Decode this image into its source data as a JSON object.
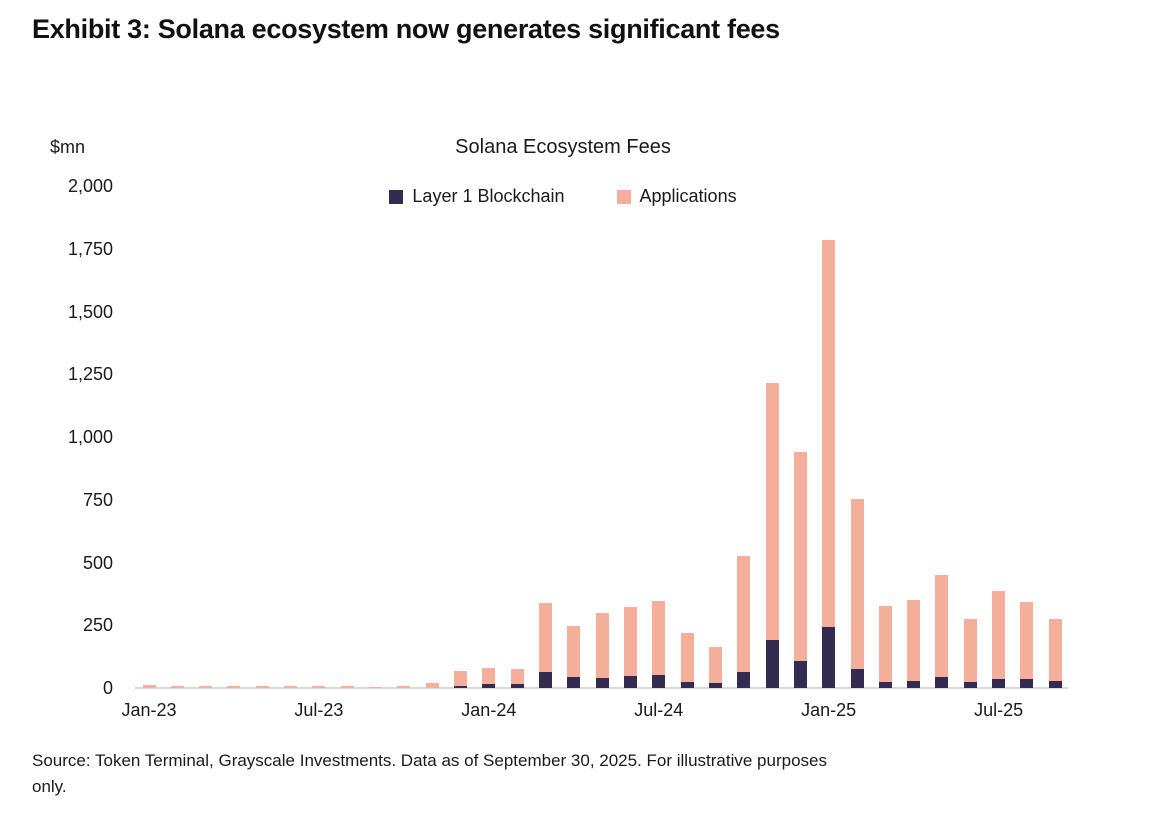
{
  "exhibit_title": "Exhibit 3: Solana ecosystem now generates significant fees",
  "source": {
    "line1": "Source: Token Terminal, Grayscale Investments. Data as of September 30, 2025. For illustrative purposes",
    "line2": "only."
  },
  "colors": {
    "layer1": "#332C50",
    "applications": "#F3AF99",
    "axis_line": "#D9D9D9",
    "text": "#1A1A1A"
  },
  "chart_data": {
    "type": "bar",
    "stacked": true,
    "title": "Solana Ecosystem Fees",
    "unit_label": "$mn",
    "grid": false,
    "legend_position": "top-center",
    "ylim": [
      0,
      2000
    ],
    "yticks": [
      0,
      250,
      500,
      750,
      1000,
      1250,
      1500,
      1750,
      2000
    ],
    "ytick_labels": [
      "0",
      "250",
      "500",
      "750",
      "1,000",
      "1,250",
      "1,500",
      "1,750",
      "2,000"
    ],
    "xtick_labels": [
      "Jan-23",
      "Jul-23",
      "Jan-24",
      "Jul-24",
      "Jan-25",
      "Jul-25"
    ],
    "categories": [
      "Jan-23",
      "Feb-23",
      "Mar-23",
      "Apr-23",
      "May-23",
      "Jun-23",
      "Jul-23",
      "Aug-23",
      "Sep-23",
      "Oct-23",
      "Nov-23",
      "Dec-23",
      "Jan-24",
      "Feb-24",
      "Mar-24",
      "Apr-24",
      "May-24",
      "Jun-24",
      "Jul-24",
      "Aug-24",
      "Sep-24",
      "Oct-24",
      "Nov-24",
      "Dec-24",
      "Jan-25",
      "Feb-25",
      "Mar-25",
      "Apr-25",
      "May-25",
      "Jun-25",
      "Jul-25",
      "Aug-25",
      "Sep-25"
    ],
    "series": [
      {
        "name": "Layer 1 Blockchain",
        "color": "#332C50",
        "values": [
          0,
          0,
          0,
          0,
          0,
          0,
          0,
          0,
          0,
          0,
          2,
          8,
          15,
          15,
          62,
          45,
          40,
          49,
          51,
          25,
          19,
          65,
          190,
          108,
          242,
          77,
          25,
          29,
          43,
          25,
          36,
          36,
          29
        ]
      },
      {
        "name": "Applications",
        "color": "#F3AF99",
        "values": [
          12,
          9,
          7,
          7,
          10,
          7,
          9,
          8,
          6,
          9,
          16,
          60,
          63,
          59,
          278,
          202,
          258,
          275,
          296,
          193,
          146,
          459,
          1025,
          832,
          1542,
          676,
          303,
          322,
          408,
          249,
          352,
          308,
          246
        ]
      }
    ]
  }
}
